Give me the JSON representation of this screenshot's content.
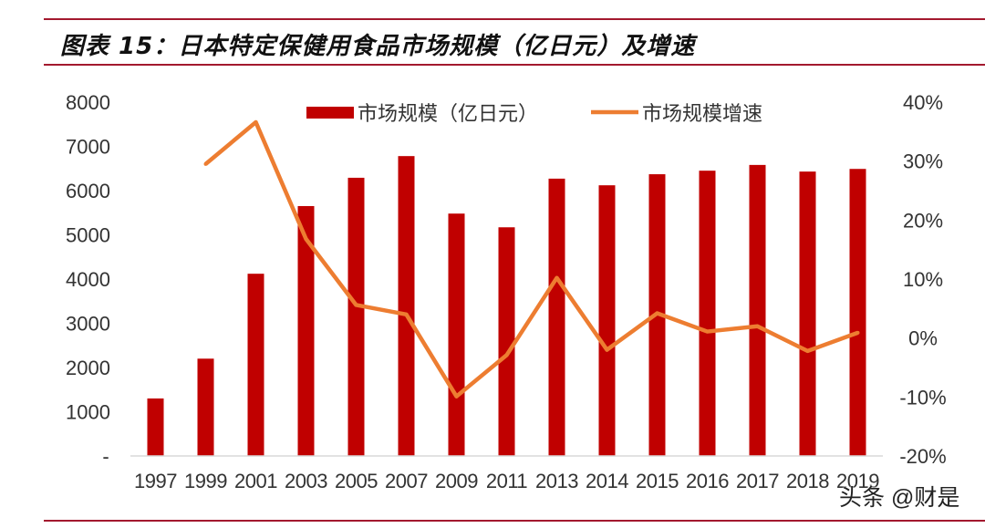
{
  "title": "图表 15：日本特定保健用食品市场规模（亿日元）及增速",
  "watermark": "头条 @财是",
  "chart_data": {
    "type": "bar+line",
    "categories": [
      "1997",
      "1999",
      "2001",
      "2003",
      "2005",
      "2007",
      "2009",
      "2011",
      "2013",
      "2014",
      "2015",
      "2016",
      "2017",
      "2018",
      "2019"
    ],
    "series": [
      {
        "name": "市场规模（亿日元）",
        "type": "bar",
        "axis": "left",
        "color": "#c00000",
        "values": [
          1300,
          2200,
          4120,
          5650,
          6290,
          6780,
          5480,
          5170,
          6270,
          6120,
          6370,
          6450,
          6580,
          6430,
          6490
        ]
      },
      {
        "name": "市场规模增速",
        "type": "line",
        "axis": "right",
        "color": "#ed7d31",
        "values": [
          null,
          29.5,
          36.6,
          16.8,
          5.6,
          4.0,
          -9.9,
          -2.9,
          10.2,
          -2.0,
          4.2,
          1.1,
          2.0,
          -2.2,
          0.9
        ]
      }
    ],
    "left_axis": {
      "ylim": [
        0,
        8000
      ],
      "ticks": [
        "-",
        "1000",
        "2000",
        "3000",
        "4000",
        "5000",
        "6000",
        "7000",
        "8000"
      ]
    },
    "right_axis": {
      "ylim": [
        -20,
        40
      ],
      "ticks": [
        "-20%",
        "-10%",
        "0%",
        "10%",
        "20%",
        "30%",
        "40%"
      ]
    },
    "legend": "top",
    "grid": false
  }
}
